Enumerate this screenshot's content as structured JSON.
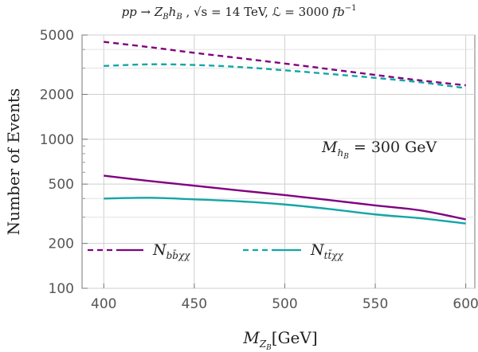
{
  "chart_data": {
    "type": "line",
    "title": "pp → Z_B h_B , √s = 14 TeV, ℒ = 3000 fb⁻¹",
    "xlabel": "M_{Z_B}[GeV]",
    "ylabel": "Number of Events",
    "yscale": "log",
    "xlim": [
      388,
      605
    ],
    "ylim": [
      100,
      5000
    ],
    "x_ticks": [
      400,
      450,
      500,
      550,
      600
    ],
    "y_ticks": [
      100,
      200,
      500,
      1000,
      2000,
      5000
    ],
    "grid": true,
    "annotation": "M_{h_B} = 300 GeV",
    "legend_position": "bottom-left",
    "x": [
      400,
      425,
      450,
      475,
      500,
      525,
      550,
      575,
      600
    ],
    "series": [
      {
        "name": "N_{bb̄χχ}",
        "group": "b",
        "color": "#800080",
        "dashed": true,
        "values": [
          4500,
          4150,
          3800,
          3500,
          3220,
          2950,
          2700,
          2480,
          2300
        ]
      },
      {
        "name": "N_{tt̄χχ}",
        "group": "t",
        "color": "#13a6a6",
        "dashed": true,
        "values": [
          3100,
          3180,
          3150,
          3050,
          2900,
          2740,
          2580,
          2410,
          2200
        ]
      },
      {
        "name": "N_{bb̄χχ}",
        "group": "b",
        "color": "#800080",
        "dashed": false,
        "values": [
          570,
          525,
          488,
          453,
          422,
          390,
          360,
          333,
          290
        ]
      },
      {
        "name": "N_{tt̄χχ}",
        "group": "t",
        "color": "#13a6a6",
        "dashed": false,
        "values": [
          400,
          405,
          395,
          383,
          365,
          340,
          313,
          295,
          272
        ]
      }
    ],
    "legend": [
      {
        "group": "b",
        "label": "N_{bb̄χχ}",
        "color": "#800080"
      },
      {
        "group": "t",
        "label": "N_{tt̄χχ}",
        "color": "#13a6a6"
      }
    ]
  },
  "display": {
    "title_parts": {
      "pp": "pp → Z",
      "zsub": "B",
      "h": "h",
      "hsub": "B",
      "rest1": " , √s = 14 TeV, ℒ = 3000 ",
      "fb": "fb",
      "exp": "−1"
    },
    "xlabel_parts": {
      "m": "M",
      "sub1": "Z",
      "sub2": "B",
      "unit": "[GeV]"
    },
    "annot_parts": {
      "m": "M",
      "sub1": "h",
      "sub2": "B",
      "rest": " = 300 GeV"
    },
    "legend_b": {
      "n": "N",
      "sub": "bb̄χχ"
    },
    "legend_t": {
      "n": "N",
      "sub": "tt̄χχ"
    }
  }
}
